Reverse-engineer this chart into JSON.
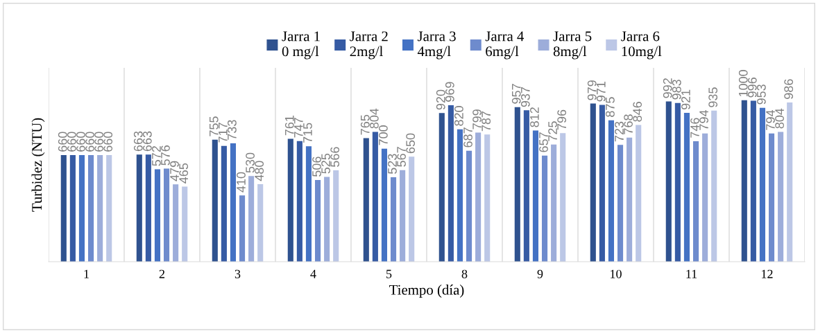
{
  "chart_data": {
    "type": "bar",
    "xlabel": "Tiempo (día)",
    "ylabel": "Turbidez (NTU)",
    "categories": [
      "1",
      "2",
      "3",
      "4",
      "5",
      "8",
      "9",
      "10",
      "11",
      "12"
    ],
    "series": [
      {
        "name": "Jarra 1\n0 mg/l",
        "color": "#2f528f",
        "values": [
          660,
          663,
          755,
          761,
          765,
          920,
          957,
          979,
          992,
          1000
        ]
      },
      {
        "name": "Jarra 2\n2mg/l",
        "color": "#365ba4",
        "values": [
          660,
          663,
          717,
          747,
          804,
          969,
          937,
          971,
          983,
          996
        ]
      },
      {
        "name": "Jarra 3\n4mg/l",
        "color": "#4472c4",
        "values": [
          660,
          572,
          733,
          715,
          700,
          820,
          812,
          875,
          921,
          953
        ]
      },
      {
        "name": "Jarra 4\n6mg/l",
        "color": "#6e8bcd",
        "values": [
          660,
          576,
          410,
          506,
          523,
          687,
          657,
          723,
          746,
          794
        ]
      },
      {
        "name": "Jarra 5\n8mg/l",
        "color": "#9dadda",
        "values": [
          660,
          479,
          530,
          525,
          567,
          799,
          725,
          768,
          794,
          804
        ]
      },
      {
        "name": "Jarra 6\n10mg/l",
        "color": "#bcc7e6",
        "values": [
          660,
          465,
          480,
          566,
          650,
          787,
          796,
          846,
          935,
          986
        ]
      }
    ],
    "ylim": [
      0,
      1200
    ],
    "tick_labels": "x",
    "data_labels": true,
    "grid": "x",
    "legend": "top"
  }
}
